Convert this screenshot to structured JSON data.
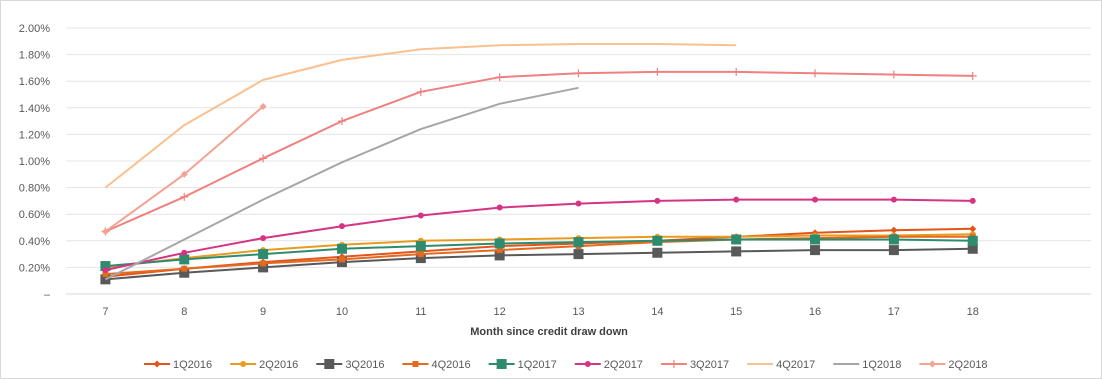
{
  "chart_data": {
    "type": "line",
    "title": "",
    "xlabel": "Month since credit draw down",
    "ylabel": "",
    "x": [
      7,
      8,
      9,
      10,
      11,
      12,
      13,
      14,
      15,
      16,
      17,
      18
    ],
    "xlim": [
      6.5,
      19.5
    ],
    "ylim": [
      0,
      2.0
    ],
    "y_ticks": [
      0,
      0.2,
      0.4,
      0.6,
      0.8,
      1.0,
      1.2,
      1.4,
      1.6,
      1.8,
      2.0
    ],
    "y_tick_labels": [
      "–",
      "0.20%",
      "0.40%",
      "0.60%",
      "0.80%",
      "1.00%",
      "1.20%",
      "1.40%",
      "1.60%",
      "1.80%",
      "2.00%"
    ],
    "x_tick_labels": [
      "7",
      "8",
      "9",
      "10",
      "11",
      "12",
      "13",
      "14",
      "15",
      "16",
      "17",
      "18"
    ],
    "grid": "horizontal",
    "legend_position": "bottom",
    "series": [
      {
        "name": "1Q2016",
        "color": "#E2541C",
        "marker": "diamond",
        "values": [
          0.13,
          0.19,
          0.24,
          0.28,
          0.32,
          0.36,
          0.38,
          0.4,
          0.43,
          0.46,
          0.48,
          0.49
        ]
      },
      {
        "name": "2Q2016",
        "color": "#E89B1F",
        "marker": "circle",
        "values": [
          0.2,
          0.27,
          0.33,
          0.37,
          0.4,
          0.41,
          0.42,
          0.43,
          0.43,
          0.44,
          0.44,
          0.45
        ]
      },
      {
        "name": "3Q2016",
        "color": "#595959",
        "marker": "square",
        "values": [
          0.11,
          0.16,
          0.2,
          0.24,
          0.27,
          0.29,
          0.3,
          0.31,
          0.32,
          0.33,
          0.33,
          0.34
        ]
      },
      {
        "name": "4Q2016",
        "color": "#E36A1E",
        "marker": "square-small",
        "values": [
          0.15,
          0.19,
          0.23,
          0.26,
          0.3,
          0.33,
          0.36,
          0.39,
          0.41,
          0.42,
          0.43,
          0.43
        ]
      },
      {
        "name": "1Q2017",
        "color": "#2E8B6E",
        "marker": "square",
        "values": [
          0.21,
          0.26,
          0.3,
          0.34,
          0.36,
          0.38,
          0.39,
          0.4,
          0.41,
          0.41,
          0.41,
          0.4
        ]
      },
      {
        "name": "2Q2017",
        "color": "#D63384",
        "marker": "circle",
        "values": [
          0.18,
          0.31,
          0.42,
          0.51,
          0.59,
          0.65,
          0.68,
          0.7,
          0.71,
          0.71,
          0.71,
          0.7
        ]
      },
      {
        "name": "3Q2017",
        "color": "#F08080",
        "marker": "plus",
        "values": [
          0.47,
          0.73,
          1.02,
          1.3,
          1.52,
          1.63,
          1.66,
          1.67,
          1.67,
          1.66,
          1.65,
          1.64
        ]
      },
      {
        "name": "4Q2017",
        "color": "#FAC090",
        "marker": "none",
        "values": [
          0.8,
          1.27,
          1.61,
          1.76,
          1.84,
          1.87,
          1.88,
          1.88,
          1.87,
          null,
          null,
          null
        ]
      },
      {
        "name": "1Q2018",
        "color": "#A6A6A6",
        "marker": "none",
        "values": [
          0.11,
          0.41,
          0.71,
          0.99,
          1.24,
          1.43,
          1.55,
          null,
          null,
          null,
          null,
          null
        ]
      },
      {
        "name": "2Q2018",
        "color": "#F4A292",
        "marker": "diamond",
        "values": [
          0.47,
          0.9,
          1.41,
          null,
          null,
          null,
          null,
          null,
          null,
          null,
          null,
          null
        ]
      }
    ]
  }
}
